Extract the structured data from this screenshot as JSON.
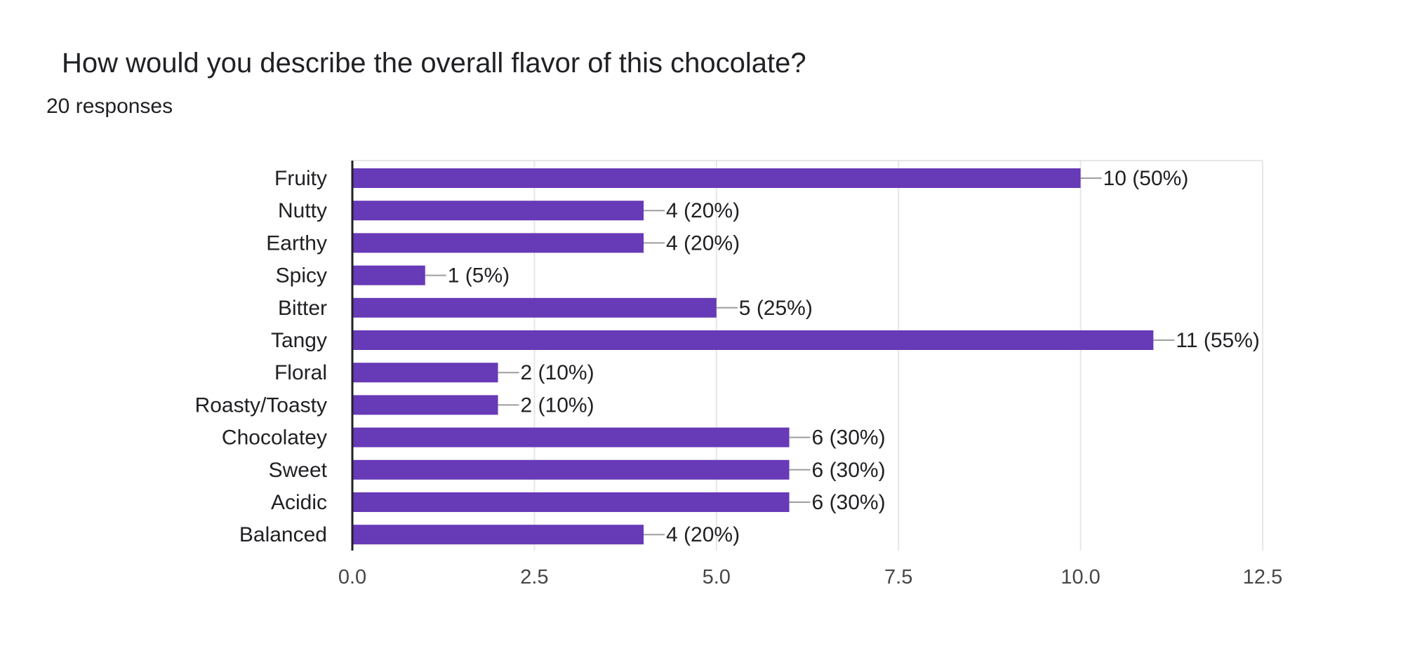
{
  "question": {
    "title": "How would you describe the overall flavor of this chocolate?",
    "responses": "20 responses"
  },
  "colors": {
    "bar": "#673ab7",
    "grid": "#e6e6e6",
    "axis": "#202124",
    "leader": "#9e9e9e"
  },
  "chart_data": {
    "type": "bar",
    "orientation": "horizontal",
    "categories": [
      "Fruity",
      "Nutty",
      "Earthy",
      "Spicy",
      "Bitter",
      "Tangy",
      "Floral",
      "Roasty/Toasty",
      "Chocolatey",
      "Sweet",
      "Acidic",
      "Balanced"
    ],
    "values": [
      10,
      4,
      4,
      1,
      5,
      11,
      2,
      2,
      6,
      6,
      6,
      4
    ],
    "data_labels": [
      "10 (50%)",
      "4 (20%)",
      "4 (20%)",
      "1 (5%)",
      "5 (25%)",
      "11 (55%)",
      "2 (10%)",
      "2 (10%)",
      "6 (30%)",
      "6 (30%)",
      "6 (30%)",
      "4 (20%)"
    ],
    "xlim": [
      0,
      12.5
    ],
    "x_ticks": [
      "0.0",
      "2.5",
      "5.0",
      "7.5",
      "10.0",
      "12.5"
    ],
    "grid": true
  }
}
